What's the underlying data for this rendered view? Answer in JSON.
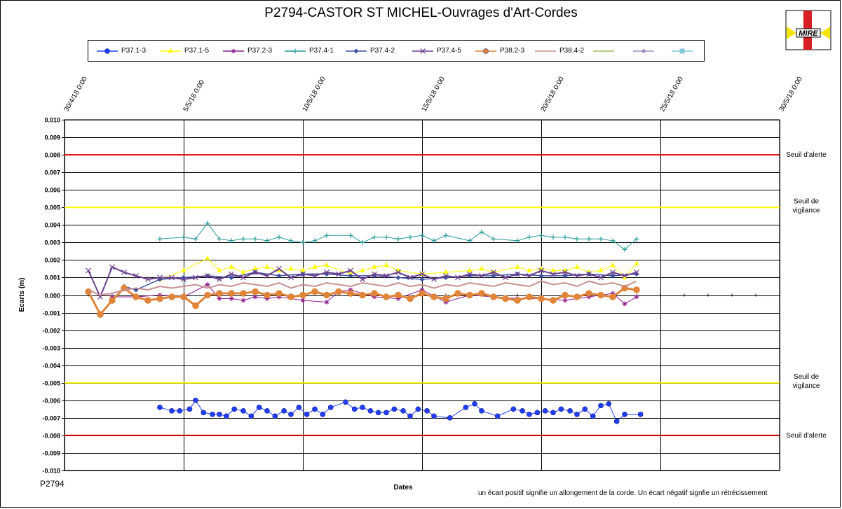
{
  "chart_data": {
    "type": "line",
    "title": "P2794-CASTOR  ST MICHEL-Ouvrages  d'Art-Cordes",
    "xlabel": "Dates",
    "ylabel": "Ecarts (m)",
    "ylim": [
      -0.01,
      0.01
    ],
    "ytick_step": 0.001,
    "x_start": "2018-04-30",
    "x_end": "2018-05-30",
    "x_ticks": [
      "30/4/18 0:00",
      "5/5/18 0:00",
      "10/5/18 0:00",
      "15/5/18 0:00",
      "20/5/18 0:00",
      "25/5/18 0:00",
      "30/5/18 0:00"
    ],
    "x_tick_dates": [
      "2018-04-30",
      "2018-05-05",
      "2018-05-10",
      "2018-05-15",
      "2018-05-20",
      "2018-05-25",
      "2018-05-30"
    ],
    "grid": true,
    "thresholds": [
      {
        "value": 0.008,
        "color": "#e00000",
        "label": "Seuil d'alerte"
      },
      {
        "value": -0.008,
        "color": "#e00000",
        "label": "Seuil d'alerte"
      },
      {
        "value": 0.005,
        "color": "#ffff00",
        "label": "Seuil de vigilance"
      },
      {
        "value": -0.005,
        "color": "#ffff00",
        "label": "Seuil de vigilance"
      }
    ],
    "series": [
      {
        "name": "P37.1-3",
        "color": "#1f3fff",
        "marker": "circle",
        "x": [
          "2018-05-04",
          "2018-05-04 12:00",
          "2018-05-04 20:00",
          "2018-05-05 06:00",
          "2018-05-05 12:00",
          "2018-05-05 20:00",
          "2018-05-06 05:00",
          "2018-05-06 12:00",
          "2018-05-06 19:00",
          "2018-05-07 03:00",
          "2018-05-07 12:00",
          "2018-05-07 20:00",
          "2018-05-08 04:00",
          "2018-05-08 12:00",
          "2018-05-08 20:00",
          "2018-05-09 05:00",
          "2018-05-09 12:00",
          "2018-05-09 20:00",
          "2018-05-10 04:00",
          "2018-05-10 12:00",
          "2018-05-10 20:00",
          "2018-05-11 04:00",
          "2018-05-11 19:00",
          "2018-05-12 04:00",
          "2018-05-12 12:00",
          "2018-05-12 20:00",
          "2018-05-13 04:00",
          "2018-05-13 12:00",
          "2018-05-13 20:00",
          "2018-05-14 05:00",
          "2018-05-14 12:00",
          "2018-05-14 20:00",
          "2018-05-15 05:00",
          "2018-05-15 12:00",
          "2018-05-16 04:00",
          "2018-05-16 20:00",
          "2018-05-17 05:00",
          "2018-05-17 12:00",
          "2018-05-18 04:00",
          "2018-05-18 20:00",
          "2018-05-19 05:00",
          "2018-05-19 12:00",
          "2018-05-19 20:00",
          "2018-05-20 04:00",
          "2018-05-20 12:00",
          "2018-05-20 20:00",
          "2018-05-21 05:00",
          "2018-05-21 12:00",
          "2018-05-21 20:00",
          "2018-05-22 04:00",
          "2018-05-22 12:00",
          "2018-05-22 20:00",
          "2018-05-23 04:00",
          "2018-05-23 12:00",
          "2018-05-24 04:00"
        ],
        "y": [
          -0.0064,
          -0.0066,
          -0.0066,
          -0.0065,
          -0.006,
          -0.0067,
          -0.0068,
          -0.0068,
          -0.0069,
          -0.0065,
          -0.0066,
          -0.0069,
          -0.0064,
          -0.0066,
          -0.0069,
          -0.0066,
          -0.0068,
          -0.0064,
          -0.0068,
          -0.0065,
          -0.0068,
          -0.0064,
          -0.0061,
          -0.0065,
          -0.0064,
          -0.0066,
          -0.0067,
          -0.0067,
          -0.0065,
          -0.0066,
          -0.0069,
          -0.0065,
          -0.0066,
          -0.0069,
          -0.007,
          -0.0064,
          -0.0062,
          -0.0066,
          -0.0069,
          -0.0065,
          -0.0066,
          -0.0068,
          -0.0067,
          -0.0066,
          -0.0067,
          -0.0065,
          -0.0066,
          -0.0068,
          -0.0065,
          -0.0069,
          -0.0063,
          -0.0062,
          -0.0072,
          -0.0068,
          -0.0068
        ]
      },
      {
        "name": "P37.1-5",
        "color": "#ffff00",
        "marker": "triangle",
        "x": [
          "2018-05-04",
          "2018-05-05",
          "2018-05-06",
          "2018-05-06 12:00",
          "2018-05-07",
          "2018-05-07 12:00",
          "2018-05-08",
          "2018-05-08 12:00",
          "2018-05-09",
          "2018-05-09 12:00",
          "2018-05-10",
          "2018-05-10 12:00",
          "2018-05-11",
          "2018-05-12",
          "2018-05-12 12:00",
          "2018-05-13",
          "2018-05-13 12:00",
          "2018-05-14",
          "2018-05-15",
          "2018-05-16",
          "2018-05-17",
          "2018-05-17 12:00",
          "2018-05-18",
          "2018-05-19",
          "2018-05-19 12:00",
          "2018-05-20",
          "2018-05-20 12:00",
          "2018-05-21",
          "2018-05-21 12:00",
          "2018-05-22",
          "2018-05-22 12:00",
          "2018-05-23",
          "2018-05-23 12:00",
          "2018-05-24"
        ],
        "y": [
          0.0009,
          0.0014,
          0.0021,
          0.0014,
          0.0016,
          0.0013,
          0.0015,
          0.0016,
          0.0014,
          0.0015,
          0.0014,
          0.0016,
          0.0017,
          0.0012,
          0.0014,
          0.0016,
          0.0017,
          0.0014,
          0.0012,
          0.0013,
          0.0014,
          0.0015,
          0.0013,
          0.0016,
          0.0014,
          0.0015,
          0.0014,
          0.0014,
          0.0016,
          0.0013,
          0.0014,
          0.0017,
          0.001,
          0.0018
        ]
      },
      {
        "name": "P37.2-3",
        "color": "#8b1a8b",
        "marker": "star",
        "x": [
          "2018-05-02",
          "2018-05-03",
          "2018-05-04",
          "2018-05-05",
          "2018-05-06",
          "2018-05-06 12:00",
          "2018-05-07",
          "2018-05-07 12:00",
          "2018-05-08",
          "2018-05-08 12:00",
          "2018-05-09",
          "2018-05-10",
          "2018-05-11",
          "2018-05-11 12:00",
          "2018-05-12",
          "2018-05-13",
          "2018-05-14",
          "2018-05-15",
          "2018-05-16",
          "2018-05-17",
          "2018-05-18",
          "2018-05-19",
          "2018-05-20",
          "2018-05-21",
          "2018-05-22",
          "2018-05-23",
          "2018-05-23 12:00",
          "2018-05-24"
        ],
        "y": [
          -0.0001,
          -0.0001,
          0.0,
          -0.0001,
          0.0006,
          -0.0002,
          -0.0002,
          -0.0003,
          -0.0001,
          -0.0002,
          -0.0001,
          -0.0003,
          -0.0004,
          0.0002,
          0.0003,
          -0.0001,
          -0.0002,
          0.0003,
          -0.0004,
          0.0,
          -0.0001,
          -0.0002,
          -0.0002,
          -0.0003,
          -0.0001,
          0.0001,
          -0.0005,
          -0.0001
        ]
      },
      {
        "name": "P37.4-1",
        "color": "#2a9a9a",
        "marker": "plus",
        "x": [
          "2018-05-04",
          "2018-05-05",
          "2018-05-05 12:00",
          "2018-05-06",
          "2018-05-06 12:00",
          "2018-05-07",
          "2018-05-07 12:00",
          "2018-05-08",
          "2018-05-08 12:00",
          "2018-05-09",
          "2018-05-09 12:00",
          "2018-05-10",
          "2018-05-10 12:00",
          "2018-05-11",
          "2018-05-12",
          "2018-05-12 12:00",
          "2018-05-13",
          "2018-05-13 12:00",
          "2018-05-14",
          "2018-05-14 12:00",
          "2018-05-15",
          "2018-05-15 12:00",
          "2018-05-16",
          "2018-05-17",
          "2018-05-17 12:00",
          "2018-05-18",
          "2018-05-19",
          "2018-05-19 12:00",
          "2018-05-20",
          "2018-05-20 12:00",
          "2018-05-21",
          "2018-05-21 12:00",
          "2018-05-22",
          "2018-05-22 12:00",
          "2018-05-23",
          "2018-05-23 12:00",
          "2018-05-24"
        ],
        "y": [
          0.0032,
          0.0033,
          0.0032,
          0.0041,
          0.0032,
          0.0031,
          0.0032,
          0.0032,
          0.0031,
          0.0033,
          0.0031,
          0.003,
          0.0031,
          0.0034,
          0.0034,
          0.003,
          0.0033,
          0.0033,
          0.0032,
          0.0033,
          0.0034,
          0.0031,
          0.0034,
          0.0031,
          0.0036,
          0.0032,
          0.0031,
          0.0033,
          0.0034,
          0.0033,
          0.0033,
          0.0032,
          0.0032,
          0.0032,
          0.0031,
          0.0026,
          0.0032
        ]
      },
      {
        "name": "P37.4-2",
        "color": "#3a4fa0",
        "marker": "diamond",
        "x": [
          "2018-05-02 12:00",
          "2018-05-03",
          "2018-05-04",
          "2018-05-05",
          "2018-05-06",
          "2018-05-07",
          "2018-05-08",
          "2018-05-09",
          "2018-05-10",
          "2018-05-11",
          "2018-05-12",
          "2018-05-13",
          "2018-05-14",
          "2018-05-15",
          "2018-05-16",
          "2018-05-17",
          "2018-05-18",
          "2018-05-19",
          "2018-05-20",
          "2018-05-21",
          "2018-05-22",
          "2018-05-23",
          "2018-05-24"
        ],
        "y": [
          0.0005,
          0.0003,
          0.0009,
          0.001,
          0.0011,
          0.001,
          0.0013,
          0.0011,
          0.0012,
          0.0012,
          0.0011,
          0.0011,
          0.001,
          0.0009,
          0.001,
          0.0011,
          0.0011,
          0.0012,
          0.0011,
          0.0011,
          0.0012,
          0.0011,
          0.0012
        ]
      },
      {
        "name": "P37.4-5",
        "color": "#6a3f8f",
        "marker": "cross",
        "x": [
          "2018-05-01",
          "2018-05-01 12:00",
          "2018-05-02",
          "2018-05-02 12:00",
          "2018-05-03",
          "2018-05-03 12:00",
          "2018-05-04",
          "2018-05-04 12:00",
          "2018-05-05",
          "2018-05-05 12:00",
          "2018-05-06",
          "2018-05-06 12:00",
          "2018-05-07",
          "2018-05-07 12:00",
          "2018-05-08",
          "2018-05-08 12:00",
          "2018-05-09",
          "2018-05-09 12:00",
          "2018-05-10",
          "2018-05-10 12:00",
          "2018-05-11",
          "2018-05-11 12:00",
          "2018-05-12",
          "2018-05-12 12:00",
          "2018-05-13",
          "2018-05-13 12:00",
          "2018-05-14",
          "2018-05-14 12:00",
          "2018-05-15",
          "2018-05-15 12:00",
          "2018-05-16",
          "2018-05-16 12:00",
          "2018-05-17",
          "2018-05-17 12:00",
          "2018-05-18",
          "2018-05-18 12:00",
          "2018-05-19",
          "2018-05-19 12:00",
          "2018-05-20",
          "2018-05-20 12:00",
          "2018-05-21",
          "2018-05-21 12:00",
          "2018-05-22",
          "2018-05-22 12:00",
          "2018-05-23",
          "2018-05-23 12:00",
          "2018-05-24"
        ],
        "y": [
          0.0014,
          -0.0001,
          0.0016,
          0.0013,
          0.0011,
          0.0009,
          0.001,
          0.001,
          0.0009,
          0.001,
          0.0011,
          0.0009,
          0.0012,
          0.001,
          0.0013,
          0.0011,
          0.0015,
          0.001,
          0.0012,
          0.0011,
          0.0013,
          0.0012,
          0.0014,
          0.0009,
          0.0012,
          0.0011,
          0.0013,
          0.001,
          0.0012,
          0.0009,
          0.0011,
          0.001,
          0.0012,
          0.0011,
          0.0013,
          0.001,
          0.0012,
          0.0011,
          0.0014,
          0.0012,
          0.0013,
          0.0011,
          0.0012,
          0.001,
          0.0013,
          0.0011,
          0.0013
        ]
      },
      {
        "name": "P38.2-3",
        "color": "#e0843a",
        "marker": "circle",
        "x": [
          "2018-05-01",
          "2018-05-01 12:00",
          "2018-05-02",
          "2018-05-02 12:00",
          "2018-05-03",
          "2018-05-03 12:00",
          "2018-05-04",
          "2018-05-04 12:00",
          "2018-05-05",
          "2018-05-05 12:00",
          "2018-05-06",
          "2018-05-06 12:00",
          "2018-05-07",
          "2018-05-07 12:00",
          "2018-05-08",
          "2018-05-08 12:00",
          "2018-05-09",
          "2018-05-09 12:00",
          "2018-05-10",
          "2018-05-10 12:00",
          "2018-05-11",
          "2018-05-11 12:00",
          "2018-05-12",
          "2018-05-12 12:00",
          "2018-05-13",
          "2018-05-13 12:00",
          "2018-05-14",
          "2018-05-14 12:00",
          "2018-05-15",
          "2018-05-15 12:00",
          "2018-05-16",
          "2018-05-16 12:00",
          "2018-05-17",
          "2018-05-17 12:00",
          "2018-05-18",
          "2018-05-18 12:00",
          "2018-05-19",
          "2018-05-19 12:00",
          "2018-05-20",
          "2018-05-20 12:00",
          "2018-05-21",
          "2018-05-21 12:00",
          "2018-05-22",
          "2018-05-22 12:00",
          "2018-05-23",
          "2018-05-23 12:00",
          "2018-05-24"
        ],
        "y": [
          0.0002,
          -0.0011,
          -0.0003,
          0.0004,
          -0.0001,
          -0.0003,
          -0.0002,
          -0.0001,
          -0.0001,
          -0.0006,
          0.0,
          0.0001,
          0.0001,
          0.0001,
          0.0002,
          0.0,
          0.0001,
          -0.0001,
          0.0,
          0.0002,
          0.0,
          0.0002,
          0.0001,
          0.0,
          0.0001,
          -0.0001,
          0.0,
          -0.0002,
          0.0001,
          -0.0001,
          -0.0002,
          0.0001,
          0.0,
          0.0001,
          -0.0001,
          -0.0002,
          -0.0003,
          -0.0001,
          -0.0002,
          -0.0003,
          0.0,
          -0.0001,
          0.0001,
          0.0,
          -0.0001,
          0.0004,
          0.0003
        ]
      },
      {
        "name": "P38.4-2",
        "color": "#c89090",
        "marker": "none",
        "x": [
          "2018-05-01",
          "2018-05-01 12:00",
          "2018-05-02",
          "2018-05-02 12:00",
          "2018-05-03",
          "2018-05-03 12:00",
          "2018-05-04",
          "2018-05-04 12:00",
          "2018-05-05",
          "2018-05-05 12:00",
          "2018-05-06",
          "2018-05-06 12:00",
          "2018-05-07",
          "2018-05-07 12:00",
          "2018-05-08",
          "2018-05-08 12:00",
          "2018-05-09",
          "2018-05-09 12:00",
          "2018-05-10",
          "2018-05-10 12:00",
          "2018-05-11",
          "2018-05-11 12:00",
          "2018-05-12",
          "2018-05-12 12:00",
          "2018-05-13",
          "2018-05-13 12:00",
          "2018-05-14",
          "2018-05-14 12:00",
          "2018-05-15",
          "2018-05-15 12:00",
          "2018-05-16",
          "2018-05-16 12:00",
          "2018-05-17",
          "2018-05-17 12:00",
          "2018-05-18",
          "2018-05-18 12:00",
          "2018-05-19",
          "2018-05-19 12:00",
          "2018-05-20",
          "2018-05-20 12:00",
          "2018-05-21",
          "2018-05-21 12:00",
          "2018-05-22",
          "2018-05-22 12:00",
          "2018-05-23",
          "2018-05-23 12:00",
          "2018-05-24"
        ],
        "y": [
          0.0003,
          0.0,
          0.0001,
          0.0003,
          0.0004,
          0.0003,
          0.0005,
          0.0004,
          0.0005,
          0.0006,
          0.0004,
          0.0006,
          0.0005,
          0.0007,
          0.0006,
          0.0005,
          0.0007,
          0.0004,
          0.0006,
          0.0005,
          0.0007,
          0.0006,
          0.0005,
          0.0007,
          0.0006,
          0.0005,
          0.0007,
          0.0005,
          0.0006,
          0.0004,
          0.0006,
          0.0005,
          0.0007,
          0.0006,
          0.0005,
          0.0007,
          0.0006,
          0.0005,
          0.0008,
          0.0006,
          0.0007,
          0.0005,
          0.0008,
          0.0006,
          0.0007,
          0.0005,
          0.0008
        ]
      },
      {
        "name": "",
        "color": "#9bbb59",
        "marker": "none",
        "x": [],
        "y": []
      },
      {
        "name": "",
        "color": "#a08cc0",
        "marker": "diamond",
        "x": [],
        "y": []
      },
      {
        "name": "",
        "color": "#7fc8d8",
        "marker": "square",
        "x": [],
        "y": []
      }
    ]
  },
  "plot_id": "P2794",
  "footnote": "un écart  positif  signifie  un allongement  de la corde.  Un écart  négatif  signfie  un  rétrécissement",
  "logo": {
    "text": "MIRE"
  }
}
